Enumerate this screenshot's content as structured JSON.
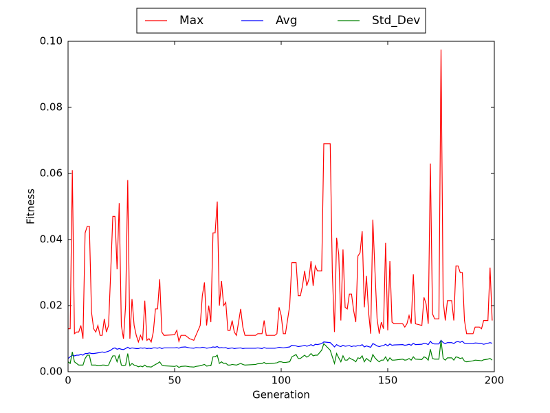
{
  "chart_data": {
    "type": "line",
    "xlabel": "Generation",
    "ylabel": "Fitness",
    "x": [
      0,
      1,
      2,
      3,
      4,
      5,
      6,
      7,
      8,
      9,
      10,
      11,
      12,
      13,
      14,
      15,
      16,
      17,
      18,
      19,
      20,
      21,
      22,
      23,
      24,
      25,
      26,
      27,
      28,
      29,
      30,
      31,
      32,
      33,
      34,
      35,
      36,
      37,
      38,
      39,
      40,
      41,
      42,
      43,
      44,
      45,
      50,
      51,
      52,
      53,
      55,
      57,
      59,
      60,
      62,
      63,
      64,
      65,
      66,
      67,
      68,
      69,
      70,
      71,
      72,
      73,
      74,
      75,
      76,
      77,
      78,
      79,
      81,
      82,
      83,
      88,
      89,
      91,
      92,
      93,
      97,
      98,
      99,
      100,
      101,
      102,
      104,
      105,
      107,
      108,
      109,
      110,
      111,
      112,
      113,
      114,
      115,
      116,
      117,
      119,
      120,
      123,
      124,
      125,
      126,
      127,
      128,
      129,
      130,
      131,
      132,
      133,
      134,
      135,
      136,
      137,
      138,
      139,
      140,
      141,
      142,
      143,
      144,
      145,
      146,
      147,
      148,
      149,
      150,
      151,
      152,
      153,
      157,
      158,
      159,
      160,
      161,
      162,
      163,
      166,
      167,
      168,
      169,
      170,
      171,
      172,
      174,
      175,
      176,
      177,
      178,
      180,
      181,
      182,
      183,
      184,
      185,
      186,
      187,
      190,
      191,
      193,
      194,
      195,
      197,
      198,
      199
    ],
    "series": [
      {
        "name": "Max",
        "color": "#ff0000",
        "values": [
          0.013,
          0.013,
          0.061,
          0.0115,
          0.012,
          0.012,
          0.014,
          0.01,
          0.042,
          0.044,
          0.044,
          0.018,
          0.013,
          0.012,
          0.014,
          0.011,
          0.011,
          0.016,
          0.012,
          0.014,
          0.03,
          0.047,
          0.047,
          0.031,
          0.051,
          0.014,
          0.01,
          0.02,
          0.058,
          0.01,
          0.022,
          0.014,
          0.011,
          0.009,
          0.011,
          0.0095,
          0.0215,
          0.0095,
          0.01,
          0.009,
          0.012,
          0.019,
          0.019,
          0.028,
          0.012,
          0.011,
          0.0112,
          0.0125,
          0.0092,
          0.011,
          0.011,
          0.01,
          0.0095,
          0.011,
          0.014,
          0.023,
          0.027,
          0.014,
          0.02,
          0.015,
          0.042,
          0.042,
          0.0515,
          0.02,
          0.0275,
          0.02,
          0.021,
          0.0125,
          0.0125,
          0.0155,
          0.012,
          0.011,
          0.019,
          0.0135,
          0.011,
          0.011,
          0.0115,
          0.0115,
          0.0155,
          0.011,
          0.011,
          0.0115,
          0.0195,
          0.017,
          0.0115,
          0.0115,
          0.02,
          0.033,
          0.033,
          0.023,
          0.023,
          0.026,
          0.0305,
          0.026,
          0.028,
          0.0335,
          0.026,
          0.032,
          0.0305,
          0.0305,
          0.069,
          0.069,
          0.03,
          0.012,
          0.0405,
          0.0355,
          0.0155,
          0.037,
          0.0195,
          0.019,
          0.0235,
          0.0235,
          0.0185,
          0.015,
          0.035,
          0.036,
          0.0425,
          0.0195,
          0.029,
          0.018,
          0.0115,
          0.046,
          0.0305,
          0.016,
          0.0115,
          0.015,
          0.013,
          0.039,
          0.0125,
          0.0335,
          0.015,
          0.0145,
          0.0145,
          0.0135,
          0.0145,
          0.017,
          0.0145,
          0.0295,
          0.0145,
          0.014,
          0.0225,
          0.0205,
          0.0145,
          0.063,
          0.0175,
          0.016,
          0.016,
          0.0975,
          0.0215,
          0.0155,
          0.0215,
          0.0215,
          0.0155,
          0.032,
          0.032,
          0.03,
          0.03,
          0.0155,
          0.0115,
          0.0115,
          0.0135,
          0.0135,
          0.013,
          0.0155,
          0.0155,
          0.0315,
          0.0155
        ]
      },
      {
        "name": "Avg",
        "color": "#0000ff",
        "values": [
          0.004,
          0.0045,
          0.005,
          0.0048,
          0.005,
          0.005,
          0.0052,
          0.005,
          0.0055,
          0.0055,
          0.0057,
          0.0055,
          0.0055,
          0.0056,
          0.0057,
          0.0058,
          0.006,
          0.0058,
          0.006,
          0.0062,
          0.0065,
          0.007,
          0.0072,
          0.0068,
          0.007,
          0.0068,
          0.0067,
          0.007,
          0.0074,
          0.007,
          0.0072,
          0.0071,
          0.007,
          0.007,
          0.0072,
          0.0071,
          0.0072,
          0.007,
          0.0071,
          0.007,
          0.0072,
          0.0072,
          0.0071,
          0.0073,
          0.007,
          0.0072,
          0.0072,
          0.0073,
          0.0071,
          0.0074,
          0.0075,
          0.0072,
          0.0071,
          0.0073,
          0.0072,
          0.0074,
          0.0073,
          0.0071,
          0.0072,
          0.0073,
          0.0075,
          0.0074,
          0.0076,
          0.0072,
          0.0073,
          0.0072,
          0.0073,
          0.007,
          0.0071,
          0.0072,
          0.007,
          0.0071,
          0.0072,
          0.007,
          0.0071,
          0.0071,
          0.0072,
          0.007,
          0.0073,
          0.0071,
          0.0071,
          0.0072,
          0.0074,
          0.0073,
          0.0072,
          0.0073,
          0.0075,
          0.008,
          0.0078,
          0.0076,
          0.0077,
          0.0078,
          0.008,
          0.0077,
          0.0079,
          0.0082,
          0.0078,
          0.0083,
          0.0082,
          0.0085,
          0.009,
          0.0088,
          0.0082,
          0.0075,
          0.0082,
          0.0078,
          0.0076,
          0.008,
          0.0077,
          0.0078,
          0.0079,
          0.0076,
          0.0078,
          0.0077,
          0.0079,
          0.0078,
          0.0082,
          0.0075,
          0.0078,
          0.0076,
          0.0074,
          0.0085,
          0.0082,
          0.0078,
          0.0076,
          0.0078,
          0.0079,
          0.0083,
          0.0078,
          0.0084,
          0.008,
          0.0081,
          0.0082,
          0.008,
          0.0081,
          0.0083,
          0.008,
          0.0086,
          0.0082,
          0.0083,
          0.0086,
          0.0085,
          0.0082,
          0.0092,
          0.0085,
          0.0084,
          0.0084,
          0.0095,
          0.0088,
          0.0085,
          0.0088,
          0.0088,
          0.0085,
          0.009,
          0.0091,
          0.0089,
          0.0092,
          0.0086,
          0.0085,
          0.0085,
          0.0087,
          0.0086,
          0.0085,
          0.0083,
          0.0086,
          0.0088,
          0.0086
        ]
      },
      {
        "name": "Std_Dev",
        "color": "#008000",
        "values": [
          0.003,
          0.0025,
          0.006,
          0.003,
          0.0025,
          0.002,
          0.002,
          0.002,
          0.004,
          0.005,
          0.005,
          0.002,
          0.002,
          0.002,
          0.0018,
          0.0018,
          0.002,
          0.002,
          0.0018,
          0.002,
          0.0035,
          0.0048,
          0.0048,
          0.003,
          0.005,
          0.002,
          0.0018,
          0.002,
          0.0055,
          0.0018,
          0.0025,
          0.002,
          0.0018,
          0.0015,
          0.0017,
          0.0015,
          0.002,
          0.0015,
          0.0015,
          0.0014,
          0.0018,
          0.0022,
          0.0025,
          0.003,
          0.002,
          0.0018,
          0.0016,
          0.0018,
          0.0013,
          0.0016,
          0.0017,
          0.0015,
          0.0014,
          0.0016,
          0.0018,
          0.002,
          0.0022,
          0.0017,
          0.0018,
          0.0018,
          0.0045,
          0.0045,
          0.005,
          0.0025,
          0.003,
          0.0025,
          0.0026,
          0.002,
          0.002,
          0.0022,
          0.0021,
          0.002,
          0.0025,
          0.0022,
          0.002,
          0.0022,
          0.0024,
          0.0025,
          0.0028,
          0.0024,
          0.0026,
          0.0027,
          0.003,
          0.003,
          0.0028,
          0.0028,
          0.003,
          0.0045,
          0.0052,
          0.004,
          0.004,
          0.0045,
          0.005,
          0.0044,
          0.0048,
          0.0055,
          0.0048,
          0.005,
          0.005,
          0.0065,
          0.0085,
          0.0065,
          0.0045,
          0.0025,
          0.0055,
          0.0042,
          0.003,
          0.0048,
          0.0035,
          0.0035,
          0.0042,
          0.0038,
          0.0035,
          0.003,
          0.0042,
          0.004,
          0.0048,
          0.003,
          0.004,
          0.0035,
          0.003,
          0.0052,
          0.0042,
          0.0035,
          0.003,
          0.0035,
          0.0035,
          0.0045,
          0.0032,
          0.0042,
          0.0035,
          0.0035,
          0.0038,
          0.0035,
          0.0036,
          0.004,
          0.0035,
          0.0045,
          0.0038,
          0.0037,
          0.0045,
          0.0042,
          0.0035,
          0.0068,
          0.004,
          0.0038,
          0.0038,
          0.0095,
          0.004,
          0.0035,
          0.0042,
          0.0042,
          0.0035,
          0.0045,
          0.0043,
          0.004,
          0.0042,
          0.0032,
          0.003,
          0.0033,
          0.0035,
          0.0034,
          0.0033,
          0.0036,
          0.0038,
          0.004,
          0.0035
        ]
      }
    ],
    "xlim": [
      0,
      200
    ],
    "xticks": [
      0,
      50,
      100,
      150,
      200
    ],
    "ylim": [
      0,
      0.1
    ],
    "yticks": [
      {
        "value": 0,
        "label": "0.00"
      },
      {
        "value": 0.02,
        "label": "0.02"
      },
      {
        "value": 0.04,
        "label": "0.04"
      },
      {
        "value": 0.06,
        "label": "0.06"
      },
      {
        "value": 0.08,
        "label": "0.08"
      },
      {
        "value": 0.1,
        "label": "0.10"
      }
    ],
    "legend": "upper center",
    "grid": false
  }
}
